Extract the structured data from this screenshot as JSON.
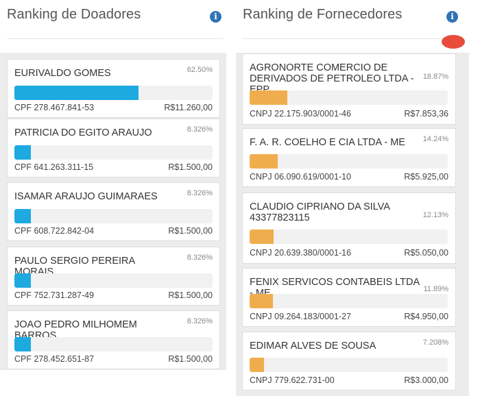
{
  "doadores": {
    "title": "Ranking de Doadores",
    "info_icon": "info-icon",
    "items": [
      {
        "name": "EURIVALDO GOMES",
        "pct": "62.50%",
        "doc": "CPF 278.467.841-53",
        "amount": "R$11.260,00",
        "fraction": 0.625
      },
      {
        "name": "PATRICIA DO EGITO ARAUJO",
        "pct": "8.326%",
        "doc": "CPF 641.263.311-15",
        "amount": "R$1.500,00",
        "fraction": 0.08326
      },
      {
        "name": "ISAMAR ARAUJO GUIMARAES",
        "pct": "8.326%",
        "doc": "CPF 608.722.842-04",
        "amount": "R$1.500,00",
        "fraction": 0.08326
      },
      {
        "name": "PAULO SERGIO PEREIRA MORAIS",
        "pct": "8.326%",
        "doc": "CPF 752.731.287-49",
        "amount": "R$1.500,00",
        "fraction": 0.08326
      },
      {
        "name": "JOAO PEDRO MILHOMEM BARROS",
        "pct": "8.326%",
        "doc": "CPF 278.452.651-87",
        "amount": "R$1.500,00",
        "fraction": 0.08326
      }
    ]
  },
  "fornecedores": {
    "title": "Ranking de Fornecedores",
    "info_icon": "info-icon",
    "items": [
      {
        "name": "AGRONORTE COMERCIO DE DERIVADOS DE PETROLEO LTDA - EPP",
        "pct": "18.87%",
        "doc": "CNPJ 22.175.903/0001-46",
        "amount": "R$7.853,36",
        "fraction": 0.1887
      },
      {
        "name": "F. A. R. COELHO E CIA LTDA - ME",
        "pct": "14.24%",
        "doc": "CNPJ 06.090.619/0001-10",
        "amount": "R$5.925,00",
        "fraction": 0.1424
      },
      {
        "name": "CLAUDIO CIPRIANO DA SILVA 43377823115",
        "pct": "12.13%",
        "doc": "CNPJ 20.639.380/0001-16",
        "amount": "R$5.050,00",
        "fraction": 0.1213
      },
      {
        "name": "FENIX SERVICOS CONTABEIS LTDA - ME",
        "pct": "11.89%",
        "doc": "CNPJ 09.264.183/0001-27",
        "amount": "R$4.950,00",
        "fraction": 0.1189
      },
      {
        "name": "EDIMAR ALVES DE SOUSA",
        "pct": "7.208%",
        "doc": "CNPJ 779.622.731-00",
        "amount": "R$3.000,00",
        "fraction": 0.07208
      }
    ]
  },
  "colors": {
    "donor_bar": "#1ea9e1",
    "supplier_bar": "#f0ad4e",
    "info": "#2f74b5"
  }
}
